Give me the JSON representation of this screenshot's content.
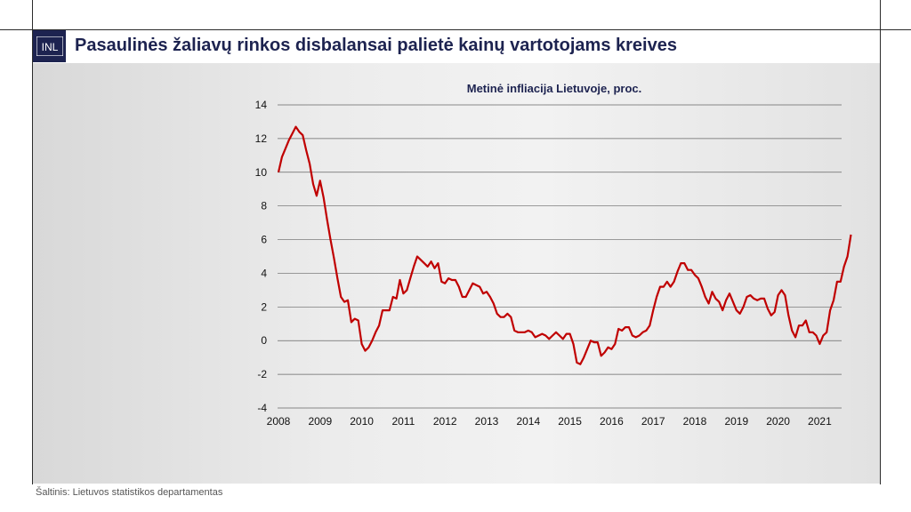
{
  "header": {
    "logo_text": "INL",
    "title": "Pasaulinės žaliavų rinkos disbalansai palietė kainų vartotojams kreives"
  },
  "footer": {
    "source": "Šaltinis: Lietuvos statistikos departamentas"
  },
  "colors": {
    "line": "#c00000",
    "title": "#1d2350",
    "grid": "#666666"
  },
  "chart_data": {
    "type": "line",
    "title": "Metinė infliacija Lietuvoje, proc.",
    "xlabel": "",
    "ylabel": "",
    "ylim": [
      -4,
      14
    ],
    "yticks": [
      "-4",
      "-2",
      "0",
      "2",
      "4",
      "6",
      "8",
      "10",
      "12",
      "14"
    ],
    "xticks": [
      "2008",
      "2009",
      "2010",
      "2011",
      "2012",
      "2013",
      "2014",
      "2015",
      "2016",
      "2017",
      "2018",
      "2019",
      "2020",
      "2021"
    ],
    "x_start": "2008-01",
    "x_end": "2021-09",
    "grid": true,
    "legend": "none",
    "series": [
      {
        "name": "",
        "values": [
          10.0,
          10.9,
          11.4,
          11.9,
          12.3,
          12.7,
          12.4,
          12.2,
          11.3,
          10.5,
          9.3,
          8.6,
          9.5,
          8.5,
          7.2,
          6.0,
          4.9,
          3.7,
          2.6,
          2.3,
          2.4,
          1.1,
          1.3,
          1.2,
          -0.2,
          -0.6,
          -0.4,
          0.0,
          0.5,
          0.9,
          1.8,
          1.8,
          1.8,
          2.6,
          2.5,
          3.6,
          2.8,
          3.0,
          3.7,
          4.4,
          5.0,
          4.8,
          4.6,
          4.4,
          4.7,
          4.3,
          4.6,
          3.5,
          3.4,
          3.7,
          3.6,
          3.6,
          3.2,
          2.6,
          2.6,
          3.0,
          3.4,
          3.3,
          3.2,
          2.8,
          2.9,
          2.6,
          2.2,
          1.6,
          1.4,
          1.4,
          1.6,
          1.4,
          0.6,
          0.5,
          0.5,
          0.5,
          0.6,
          0.5,
          0.2,
          0.3,
          0.4,
          0.3,
          0.1,
          0.3,
          0.5,
          0.3,
          0.1,
          0.4,
          0.4,
          -0.2,
          -1.3,
          -1.4,
          -1.0,
          -0.5,
          0.0,
          -0.1,
          -0.1,
          -0.9,
          -0.7,
          -0.4,
          -0.5,
          -0.2,
          0.7,
          0.6,
          0.8,
          0.8,
          0.3,
          0.2,
          0.3,
          0.5,
          0.6,
          0.9,
          1.8,
          2.6,
          3.2,
          3.2,
          3.5,
          3.2,
          3.5,
          4.1,
          4.6,
          4.6,
          4.2,
          4.2,
          3.9,
          3.7,
          3.2,
          2.6,
          2.2,
          2.9,
          2.5,
          2.3,
          1.8,
          2.4,
          2.8,
          2.3,
          1.8,
          1.6,
          2.0,
          2.6,
          2.7,
          2.5,
          2.4,
          2.5,
          2.5,
          1.9,
          1.5,
          1.7,
          2.7,
          3.0,
          2.7,
          1.5,
          0.6,
          0.2,
          0.9,
          0.9,
          1.2,
          0.5,
          0.5,
          0.3,
          -0.2,
          0.3,
          0.5,
          1.8,
          2.4,
          3.5,
          3.5,
          4.4,
          5.0,
          6.3
        ]
      }
    ]
  }
}
